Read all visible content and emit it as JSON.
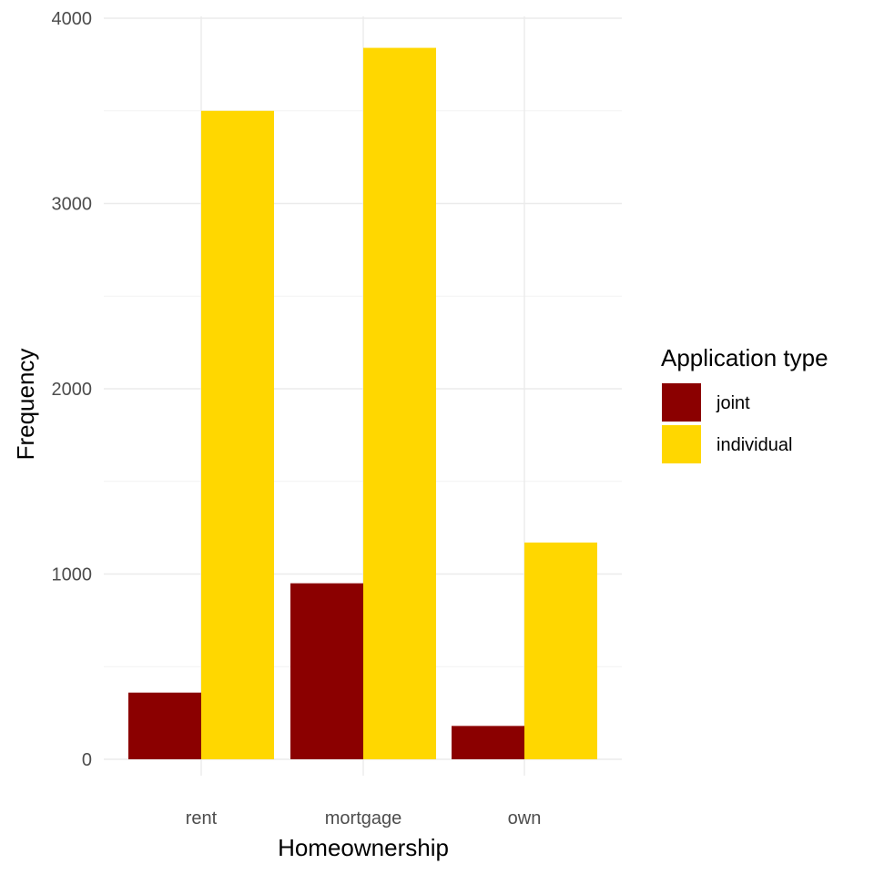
{
  "chart_data": {
    "type": "bar",
    "barmode": "grouped",
    "categories": [
      "rent",
      "mortgage",
      "own"
    ],
    "series": [
      {
        "name": "joint",
        "values": [
          360,
          950,
          180
        ],
        "color": "#8B0000"
      },
      {
        "name": "individual",
        "values": [
          3500,
          3840,
          1170
        ],
        "color": "#FFD700"
      }
    ],
    "xlabel": "Homeownership",
    "ylabel": "Frequency",
    "ylim": [
      0,
      4000
    ],
    "yticks": [
      0,
      1000,
      2000,
      3000,
      4000
    ],
    "grid": true,
    "legend": {
      "title": "Application type",
      "placement": "right"
    }
  }
}
